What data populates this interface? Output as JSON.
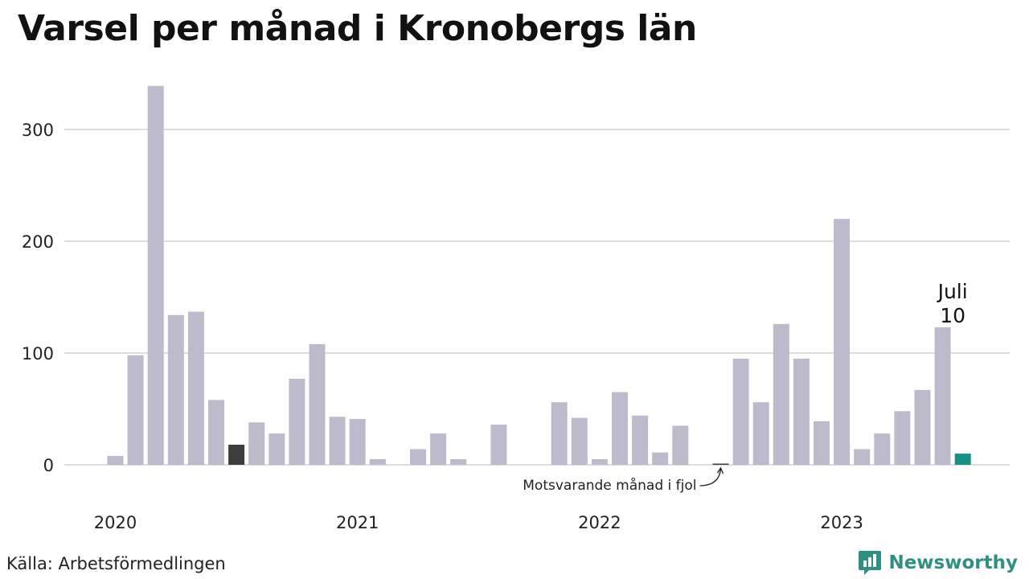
{
  "title": "Varsel per månad i Kronobergs län",
  "source": "Källa: Arbetsförmedlingen",
  "brand": {
    "name": "Newsworthy",
    "icon": "newsworthy-logo-icon",
    "color": "#2f8f82"
  },
  "highlight": {
    "month_label": "Juli",
    "value_label": "10"
  },
  "annotation": "Motsvarande månad i fjol",
  "colors": {
    "bar": "#bdbbcb",
    "previous_year": "#3d3d3d",
    "current": "#1a8f84",
    "grid": "#dddddd"
  },
  "chart_data": {
    "type": "bar",
    "title": "Varsel per månad i Kronobergs län",
    "xlabel": "",
    "ylabel": "",
    "x_tick_labels": [
      "2020",
      "2021",
      "2022",
      "2023"
    ],
    "y_ticks": [
      0,
      100,
      200,
      300
    ],
    "ylim": [
      0,
      340
    ],
    "grid": true,
    "categories": [
      "2020-01",
      "2020-02",
      "2020-03",
      "2020-04",
      "2020-05",
      "2020-06",
      "2020-07",
      "2020-08",
      "2020-09",
      "2020-10",
      "2020-11",
      "2020-12",
      "2021-01",
      "2021-02",
      "2021-03",
      "2021-04",
      "2021-05",
      "2021-06",
      "2021-07",
      "2021-08",
      "2021-09",
      "2021-10",
      "2021-11",
      "2021-12",
      "2022-01",
      "2022-02",
      "2022-03",
      "2022-04",
      "2022-05",
      "2022-06",
      "2022-07",
      "2022-08",
      "2022-09",
      "2022-10",
      "2022-11",
      "2022-12",
      "2023-01",
      "2023-02",
      "2023-03",
      "2023-04",
      "2023-05",
      "2023-06",
      "2023-07"
    ],
    "values": [
      8,
      98,
      339,
      134,
      137,
      58,
      18,
      38,
      28,
      77,
      108,
      43,
      41,
      5,
      0,
      14,
      28,
      5,
      0,
      36,
      0,
      0,
      56,
      42,
      5,
      65,
      44,
      11,
      35,
      0,
      1,
      95,
      56,
      126,
      95,
      39,
      220,
      14,
      28,
      48,
      67,
      123,
      10
    ],
    "previous_year_index": 30,
    "current_index": 42,
    "darker_index": 6
  }
}
